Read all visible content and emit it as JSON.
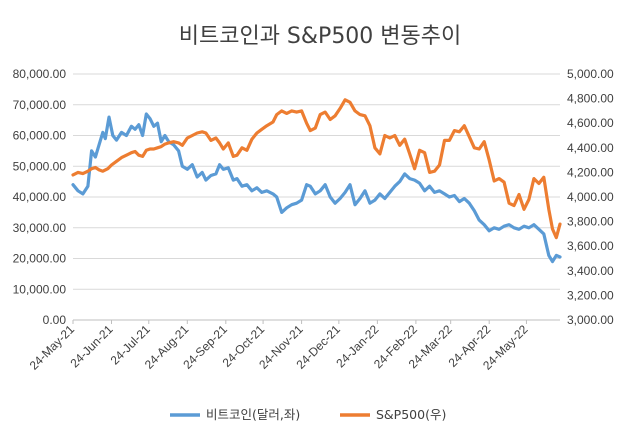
{
  "chart_data": {
    "type": "line",
    "title": "비트코인과 S&P500 변동추이",
    "xlabel": "",
    "ylabel": "",
    "grid": true,
    "legend_position": "bottom",
    "x_ticks": [
      "24-May-21",
      "24-Jun-21",
      "24-Jul-21",
      "24-Aug-21",
      "24-Sep-21",
      "24-Oct-21",
      "24-Nov-21",
      "24-Dec-21",
      "24-Jan-22",
      "24-Feb-22",
      "24-Mar-22",
      "24-Apr-22",
      "24-May-22"
    ],
    "y_left_ticks": [
      "0.00",
      "10,000.00",
      "20,000.00",
      "30,000.00",
      "40,000.00",
      "50,000.00",
      "60,000.00",
      "70,000.00",
      "80,000.00"
    ],
    "y_right_ticks": [
      "3,000.00",
      "3,200.00",
      "3,400.00",
      "3,600.00",
      "3,800.00",
      "4,000.00",
      "4,200.00",
      "4,400.00",
      "4,600.00",
      "4,800.00",
      "5,000.00"
    ],
    "y_left_range": [
      0,
      80000
    ],
    "y_right_range": [
      3000,
      5000
    ],
    "x_range": [
      "2021-05-24",
      "2022-06-20"
    ],
    "series": [
      {
        "name": "비트코인(달러,좌)",
        "axis": "left",
        "color": "#5b9bd5",
        "points": [
          [
            "2021-05-24",
            44000
          ],
          [
            "2021-05-28",
            42000
          ],
          [
            "2021-06-01",
            41000
          ],
          [
            "2021-06-05",
            43500
          ],
          [
            "2021-06-08",
            55000
          ],
          [
            "2021-06-11",
            53000
          ],
          [
            "2021-06-14",
            57000
          ],
          [
            "2021-06-17",
            61000
          ],
          [
            "2021-06-19",
            59000
          ],
          [
            "2021-06-22",
            66000
          ],
          [
            "2021-06-25",
            60000
          ],
          [
            "2021-06-28",
            58500
          ],
          [
            "2021-07-02",
            61000
          ],
          [
            "2021-07-06",
            60000
          ],
          [
            "2021-07-10",
            63000
          ],
          [
            "2021-07-13",
            62000
          ],
          [
            "2021-07-16",
            63500
          ],
          [
            "2021-07-19",
            60000
          ],
          [
            "2021-07-22",
            67000
          ],
          [
            "2021-07-25",
            65500
          ],
          [
            "2021-07-28",
            63000
          ],
          [
            "2021-07-31",
            64000
          ],
          [
            "2021-08-03",
            58000
          ],
          [
            "2021-08-06",
            60000
          ],
          [
            "2021-08-09",
            58000
          ],
          [
            "2021-08-13",
            57000
          ],
          [
            "2021-08-17",
            55000
          ],
          [
            "2021-08-20",
            50000
          ],
          [
            "2021-08-24",
            49000
          ],
          [
            "2021-08-28",
            50500
          ],
          [
            "2021-09-01",
            46500
          ],
          [
            "2021-09-05",
            48000
          ],
          [
            "2021-09-08",
            45500
          ],
          [
            "2021-09-12",
            47000
          ],
          [
            "2021-09-16",
            47500
          ],
          [
            "2021-09-19",
            50500
          ],
          [
            "2021-09-22",
            49000
          ],
          [
            "2021-09-26",
            49500
          ],
          [
            "2021-09-30",
            45500
          ],
          [
            "2021-10-03",
            46000
          ],
          [
            "2021-10-07",
            43500
          ],
          [
            "2021-10-11",
            44000
          ],
          [
            "2021-10-15",
            42000
          ],
          [
            "2021-10-19",
            43000
          ],
          [
            "2021-10-23",
            41500
          ],
          [
            "2021-10-27",
            42000
          ],
          [
            "2021-11-01",
            41000
          ],
          [
            "2021-11-04",
            40000
          ],
          [
            "2021-11-08",
            35000
          ],
          [
            "2021-11-12",
            36500
          ],
          [
            "2021-11-16",
            37500
          ],
          [
            "2021-11-20",
            38000
          ],
          [
            "2021-11-24",
            39000
          ],
          [
            "2021-11-28",
            44000
          ],
          [
            "2021-12-01",
            43500
          ],
          [
            "2021-12-05",
            41000
          ],
          [
            "2021-12-09",
            42000
          ],
          [
            "2021-12-13",
            44000
          ],
          [
            "2021-12-17",
            40000
          ],
          [
            "2021-12-21",
            38000
          ],
          [
            "2021-12-25",
            39500
          ],
          [
            "2021-12-29",
            41500
          ],
          [
            "2022-01-02",
            44000
          ],
          [
            "2022-01-06",
            37500
          ],
          [
            "2022-01-10",
            39500
          ],
          [
            "2022-01-14",
            42000
          ],
          [
            "2022-01-18",
            38000
          ],
          [
            "2022-01-22",
            39000
          ],
          [
            "2022-01-26",
            41000
          ],
          [
            "2022-01-30",
            39500
          ],
          [
            "2022-02-03",
            41500
          ],
          [
            "2022-02-07",
            43500
          ],
          [
            "2022-02-11",
            45000
          ],
          [
            "2022-02-15",
            47500
          ],
          [
            "2022-02-19",
            46000
          ],
          [
            "2022-02-23",
            45500
          ],
          [
            "2022-02-27",
            44500
          ],
          [
            "2022-03-03",
            42000
          ],
          [
            "2022-03-07",
            43500
          ],
          [
            "2022-03-11",
            41500
          ],
          [
            "2022-03-15",
            42000
          ],
          [
            "2022-03-19",
            41000
          ],
          [
            "2022-03-23",
            40000
          ],
          [
            "2022-03-27",
            40500
          ],
          [
            "2022-03-31",
            38500
          ],
          [
            "2022-04-04",
            39500
          ],
          [
            "2022-04-08",
            38000
          ],
          [
            "2022-04-12",
            35500
          ],
          [
            "2022-04-16",
            32500
          ],
          [
            "2022-04-20",
            31000
          ],
          [
            "2022-04-24",
            29000
          ],
          [
            "2022-04-28",
            30000
          ],
          [
            "2022-05-02",
            29500
          ],
          [
            "2022-05-06",
            30500
          ],
          [
            "2022-05-10",
            31000
          ],
          [
            "2022-05-14",
            30000
          ],
          [
            "2022-05-18",
            29500
          ],
          [
            "2022-05-22",
            30500
          ],
          [
            "2022-05-26",
            30000
          ],
          [
            "2022-05-30",
            31000
          ],
          [
            "2022-06-03",
            29500
          ],
          [
            "2022-06-07",
            28000
          ],
          [
            "2022-06-11",
            21000
          ],
          [
            "2022-06-14",
            19000
          ],
          [
            "2022-06-17",
            21000
          ],
          [
            "2022-06-20",
            20500
          ]
        ]
      },
      {
        "name": "S&P500(우)",
        "axis": "right",
        "color": "#ed7d31",
        "points": [
          [
            "2021-05-24",
            4180
          ],
          [
            "2021-05-28",
            4200
          ],
          [
            "2021-06-01",
            4190
          ],
          [
            "2021-06-05",
            4210
          ],
          [
            "2021-06-08",
            4230
          ],
          [
            "2021-06-11",
            4240
          ],
          [
            "2021-06-14",
            4220
          ],
          [
            "2021-06-17",
            4210
          ],
          [
            "2021-06-21",
            4230
          ],
          [
            "2021-06-24",
            4260
          ],
          [
            "2021-06-28",
            4290
          ],
          [
            "2021-07-02",
            4320
          ],
          [
            "2021-07-06",
            4340
          ],
          [
            "2021-07-10",
            4360
          ],
          [
            "2021-07-13",
            4370
          ],
          [
            "2021-07-16",
            4340
          ],
          [
            "2021-07-19",
            4330
          ],
          [
            "2021-07-22",
            4380
          ],
          [
            "2021-07-25",
            4390
          ],
          [
            "2021-07-28",
            4390
          ],
          [
            "2021-07-31",
            4400
          ],
          [
            "2021-08-03",
            4410
          ],
          [
            "2021-08-06",
            4430
          ],
          [
            "2021-08-09",
            4440
          ],
          [
            "2021-08-13",
            4450
          ],
          [
            "2021-08-17",
            4440
          ],
          [
            "2021-08-20",
            4420
          ],
          [
            "2021-08-24",
            4480
          ],
          [
            "2021-08-28",
            4500
          ],
          [
            "2021-09-01",
            4520
          ],
          [
            "2021-09-05",
            4530
          ],
          [
            "2021-09-08",
            4520
          ],
          [
            "2021-09-12",
            4460
          ],
          [
            "2021-09-16",
            4480
          ],
          [
            "2021-09-19",
            4440
          ],
          [
            "2021-09-22",
            4390
          ],
          [
            "2021-09-26",
            4440
          ],
          [
            "2021-09-30",
            4330
          ],
          [
            "2021-10-03",
            4340
          ],
          [
            "2021-10-07",
            4400
          ],
          [
            "2021-10-11",
            4380
          ],
          [
            "2021-10-15",
            4470
          ],
          [
            "2021-10-19",
            4520
          ],
          [
            "2021-10-23",
            4550
          ],
          [
            "2021-10-27",
            4580
          ],
          [
            "2021-11-01",
            4610
          ],
          [
            "2021-11-04",
            4670
          ],
          [
            "2021-11-08",
            4700
          ],
          [
            "2021-11-12",
            4680
          ],
          [
            "2021-11-16",
            4700
          ],
          [
            "2021-11-20",
            4690
          ],
          [
            "2021-11-24",
            4700
          ],
          [
            "2021-11-28",
            4600
          ],
          [
            "2021-12-01",
            4540
          ],
          [
            "2021-12-05",
            4560
          ],
          [
            "2021-12-09",
            4670
          ],
          [
            "2021-12-13",
            4690
          ],
          [
            "2021-12-17",
            4630
          ],
          [
            "2021-12-21",
            4660
          ],
          [
            "2021-12-25",
            4720
          ],
          [
            "2021-12-29",
            4790
          ],
          [
            "2022-01-02",
            4770
          ],
          [
            "2022-01-06",
            4700
          ],
          [
            "2022-01-10",
            4670
          ],
          [
            "2022-01-14",
            4660
          ],
          [
            "2022-01-18",
            4580
          ],
          [
            "2022-01-22",
            4400
          ],
          [
            "2022-01-26",
            4350
          ],
          [
            "2022-01-30",
            4500
          ],
          [
            "2022-02-03",
            4480
          ],
          [
            "2022-02-07",
            4500
          ],
          [
            "2022-02-11",
            4420
          ],
          [
            "2022-02-15",
            4470
          ],
          [
            "2022-02-19",
            4350
          ],
          [
            "2022-02-23",
            4230
          ],
          [
            "2022-02-27",
            4380
          ],
          [
            "2022-03-03",
            4360
          ],
          [
            "2022-03-07",
            4200
          ],
          [
            "2022-03-11",
            4210
          ],
          [
            "2022-03-15",
            4260
          ],
          [
            "2022-03-19",
            4460
          ],
          [
            "2022-03-23",
            4460
          ],
          [
            "2022-03-27",
            4540
          ],
          [
            "2022-03-31",
            4530
          ],
          [
            "2022-04-04",
            4580
          ],
          [
            "2022-04-08",
            4490
          ],
          [
            "2022-04-12",
            4400
          ],
          [
            "2022-04-16",
            4390
          ],
          [
            "2022-04-20",
            4450
          ],
          [
            "2022-04-24",
            4300
          ],
          [
            "2022-04-28",
            4130
          ],
          [
            "2022-05-02",
            4150
          ],
          [
            "2022-05-06",
            4120
          ],
          [
            "2022-05-10",
            3950
          ],
          [
            "2022-05-14",
            3930
          ],
          [
            "2022-05-18",
            4020
          ],
          [
            "2022-05-22",
            3900
          ],
          [
            "2022-05-26",
            3980
          ],
          [
            "2022-05-30",
            4150
          ],
          [
            "2022-06-03",
            4110
          ],
          [
            "2022-06-07",
            4160
          ],
          [
            "2022-06-11",
            3900
          ],
          [
            "2022-06-14",
            3740
          ],
          [
            "2022-06-17",
            3670
          ],
          [
            "2022-06-20",
            3780
          ]
        ]
      }
    ]
  }
}
